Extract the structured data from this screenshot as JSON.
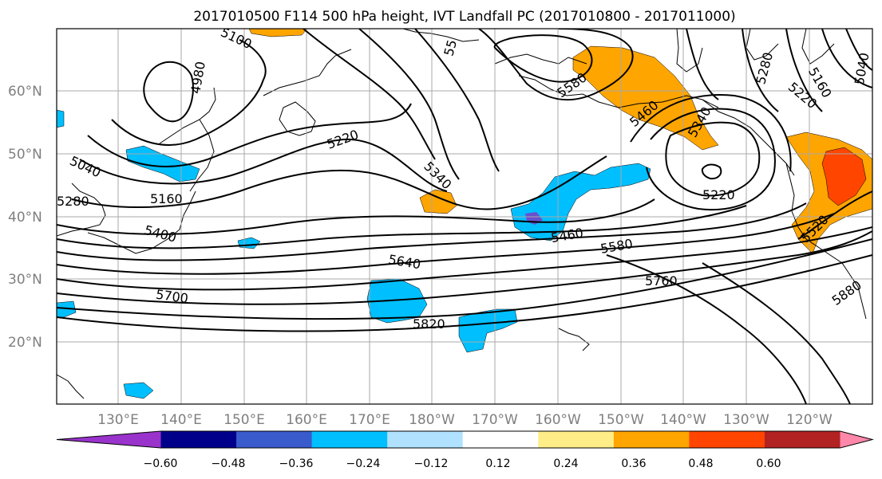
{
  "title": "2017010500 F114 500 hPa height, IVT Landfall PC (2017010800 - 2017011000)",
  "lat_labels": [
    "60°N",
    "50°N",
    "40°N",
    "30°N",
    "20°N"
  ],
  "lon_labels": [
    "130°E",
    "140°E",
    "150°E",
    "160°E",
    "170°E",
    "180°W",
    "170°W",
    "160°W",
    "150°W",
    "140°W",
    "130°W",
    "120°W"
  ],
  "contour_labels": [
    "5100",
    "4980",
    "5040",
    "5160",
    "5220",
    "5280",
    "5400",
    "5340",
    "5460",
    "5580",
    "5640",
    "5700",
    "5760",
    "5820",
    "5220",
    "5460",
    "5340",
    "5580",
    "5280",
    "5160",
    "5220",
    "5040",
    "5520",
    "5880",
    "55"
  ],
  "colorbar": {
    "ticks": [
      "−0.60",
      "−0.48",
      "−0.36",
      "−0.24",
      "−0.12",
      "0.12",
      "0.24",
      "0.36",
      "0.48",
      "0.60"
    ],
    "colors": [
      "#9933cc",
      "#00008b",
      "#3a5bcc",
      "#00bfff",
      "#b0e2ff",
      "#ffffff",
      "#ffee88",
      "#ffa500",
      "#ff4500",
      "#b22222",
      "#ff88aa"
    ]
  },
  "shading": {
    "negative_light": "#b0e2ff",
    "negative_mid": "#00bfff",
    "negative_strong": "#6a4fcc",
    "positive_mid": "#ffa500",
    "positive_strong": "#ff4500"
  }
}
